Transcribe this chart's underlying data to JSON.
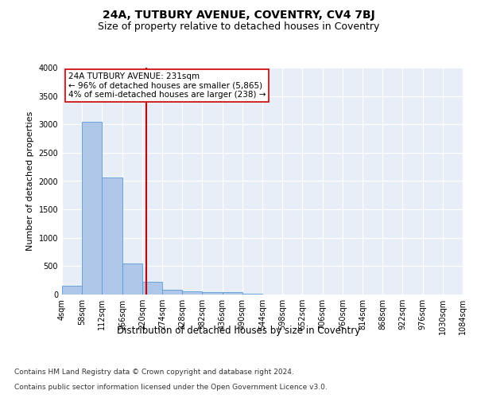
{
  "title": "24A, TUTBURY AVENUE, COVENTRY, CV4 7BJ",
  "subtitle": "Size of property relative to detached houses in Coventry",
  "xlabel": "Distribution of detached houses by size in Coventry",
  "ylabel": "Number of detached properties",
  "bar_color": "#aec6e8",
  "bar_edge_color": "#5b9bd5",
  "background_color": "#e8eef7",
  "grid_color": "#ffffff",
  "bin_edges": [
    4,
    58,
    112,
    166,
    220,
    274,
    328,
    382,
    436,
    490,
    544,
    598,
    652,
    706,
    760,
    814,
    868,
    922,
    976,
    1030,
    1084
  ],
  "bar_heights": [
    150,
    3050,
    2060,
    550,
    220,
    80,
    60,
    45,
    40,
    10,
    5,
    3,
    2,
    1,
    0,
    0,
    0,
    0,
    0,
    0
  ],
  "property_size": 231,
  "red_line_color": "#cc0000",
  "annotation_text": "24A TUTBURY AVENUE: 231sqm\n← 96% of detached houses are smaller (5,865)\n4% of semi-detached houses are larger (238) →",
  "annotation_box_color": "#cc0000",
  "ylim": [
    0,
    4000
  ],
  "yticks": [
    0,
    500,
    1000,
    1500,
    2000,
    2500,
    3000,
    3500,
    4000
  ],
  "xtick_labels": [
    "4sqm",
    "58sqm",
    "112sqm",
    "166sqm",
    "220sqm",
    "274sqm",
    "328sqm",
    "382sqm",
    "436sqm",
    "490sqm",
    "544sqm",
    "598sqm",
    "652sqm",
    "706sqm",
    "760sqm",
    "814sqm",
    "868sqm",
    "922sqm",
    "976sqm",
    "1030sqm",
    "1084sqm"
  ],
  "footer_line1": "Contains HM Land Registry data © Crown copyright and database right 2024.",
  "footer_line2": "Contains public sector information licensed under the Open Government Licence v3.0.",
  "title_fontsize": 10,
  "subtitle_fontsize": 9,
  "tick_fontsize": 7,
  "ylabel_fontsize": 8,
  "xlabel_fontsize": 8.5,
  "footer_fontsize": 6.5,
  "annotation_fontsize": 7.5
}
